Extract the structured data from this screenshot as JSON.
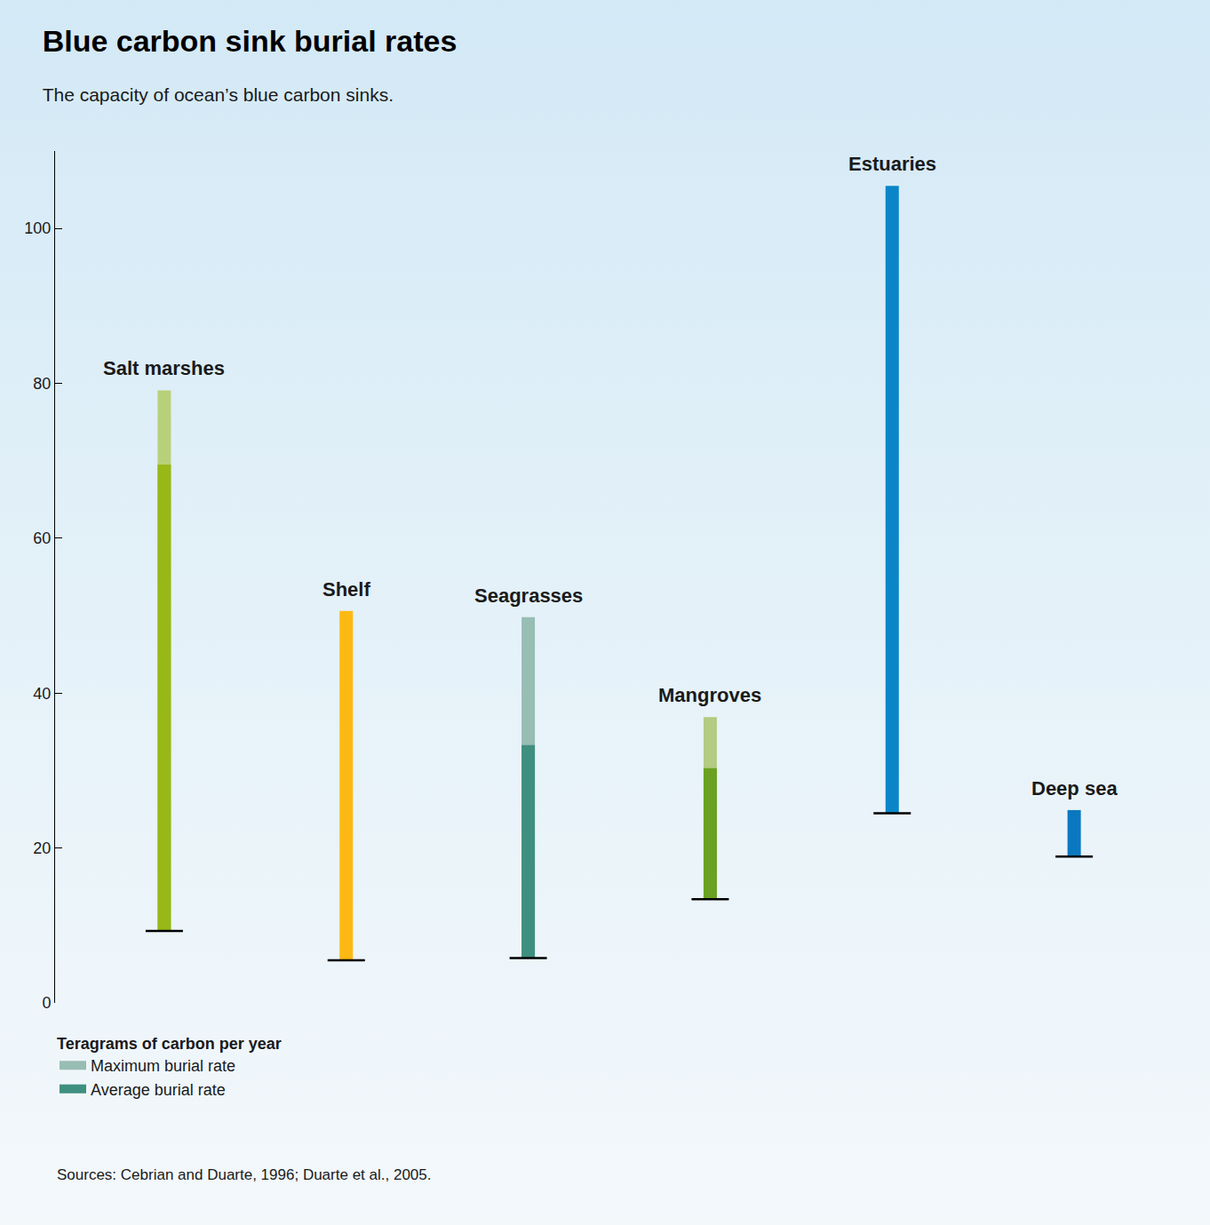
{
  "chart_data": {
    "type": "bar",
    "title": "Blue carbon sink burial rates",
    "subtitle": "The capacity of ocean’s blue carbon sinks.",
    "y_label": "Teragrams of carbon per year",
    "source": "Sources: Cebrian and Duarte, 1996; Duarte et al., 2005.",
    "categories": [
      "Salt marshes",
      "Shelf",
      "Seagrasses",
      "Mangroves",
      "Estuaries",
      "Deep sea"
    ],
    "base": [
      9.3,
      5.5,
      5.8,
      13.4,
      24.5,
      18.9
    ],
    "series": [
      {
        "name": "Maximum burial rate",
        "color": "#98bdb3",
        "colors": [
          "#b9d07a",
          "#fdb913",
          "#98bdb3",
          "#b3cb82",
          "#0a86c8",
          "#0a78c0"
        ],
        "values": [
          79.1,
          50.6,
          49.8,
          36.9,
          105.5,
          24.9
        ]
      },
      {
        "name": "Average burial rate",
        "color": "#3f8f80",
        "colors": [
          "#97b816",
          null,
          "#3f8f80",
          "#6aa121",
          null,
          null
        ],
        "values": [
          69.5,
          null,
          33.3,
          30.3,
          null,
          null
        ]
      }
    ],
    "ylim": [
      0,
      110
    ],
    "yticks": [
      0,
      20,
      40,
      60,
      80,
      100
    ],
    "grid": false,
    "legend": "bottom left",
    "tick_labels": "y"
  }
}
